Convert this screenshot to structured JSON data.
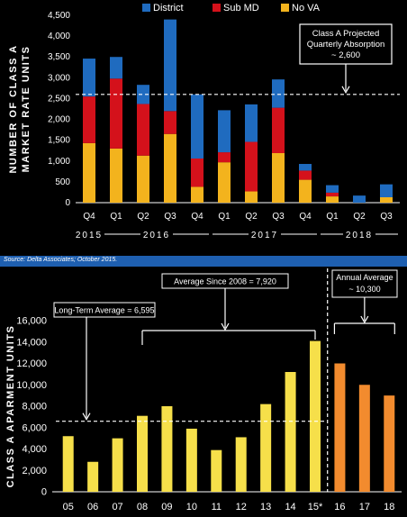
{
  "source": "Source: Delta Associates; October 2015.",
  "colors": {
    "district": "#1f6bbf",
    "submd": "#d4111b",
    "novva": "#f3b31d",
    "yellow_bar": "#f6df4a",
    "orange_bar": "#f28b2e"
  },
  "chart_data": [
    {
      "type": "bar",
      "stacked": true,
      "ylabel": "NUMBER OF CLASS A MARKET RATE UNITS",
      "ylim": [
        0,
        4500
      ],
      "yticks": [
        "0",
        "500",
        "1,000",
        "1,500",
        "2,000",
        "2,500",
        "3,000",
        "3,500",
        "4,000",
        "4,500"
      ],
      "categories": [
        "Q4",
        "Q1",
        "Q2",
        "Q3",
        "Q4",
        "Q1",
        "Q2",
        "Q3",
        "Q4",
        "Q1",
        "Q2",
        "Q3"
      ],
      "year_labels": [
        "2015",
        "2016",
        "2017",
        "2018"
      ],
      "series": [
        {
          "name": "No VA",
          "values": [
            1430,
            1300,
            1130,
            1650,
            380,
            970,
            270,
            1190,
            550,
            150,
            0,
            130
          ]
        },
        {
          "name": "Sub MD",
          "values": [
            1120,
            1680,
            1240,
            550,
            680,
            240,
            1190,
            1090,
            220,
            90,
            0,
            0
          ]
        },
        {
          "name": "District",
          "values": [
            910,
            520,
            460,
            2200,
            1540,
            1010,
            900,
            680,
            160,
            180,
            170,
            310
          ]
        }
      ],
      "reference_line": {
        "value": 2600,
        "label": "Class A Projected Quarterly Absorption ~ 2,600"
      },
      "legend": "top"
    },
    {
      "type": "bar",
      "ylabel": "CLASS A APARMENT UNITS",
      "ylim": [
        0,
        16000
      ],
      "yticks": [
        "0",
        "2,000",
        "4,000",
        "6,000",
        "8,000",
        "10,000",
        "12,000",
        "14,000",
        "16,000"
      ],
      "categories": [
        "05",
        "06",
        "07",
        "08",
        "09",
        "10",
        "11",
        "12",
        "13",
        "14",
        "15*",
        "16",
        "17",
        "18"
      ],
      "values": [
        5200,
        2800,
        5000,
        7100,
        8000,
        5900,
        3900,
        5100,
        8200,
        11200,
        14100,
        12000,
        10000,
        9000
      ],
      "projected_from_index": 11,
      "reference_line": {
        "value": 6595,
        "label": "Long-Term Average = 6,595"
      },
      "annotations": [
        {
          "label": "Average Since 2008 = 7,920"
        },
        {
          "label": "Annual Average ~ 10,300"
        }
      ]
    }
  ]
}
